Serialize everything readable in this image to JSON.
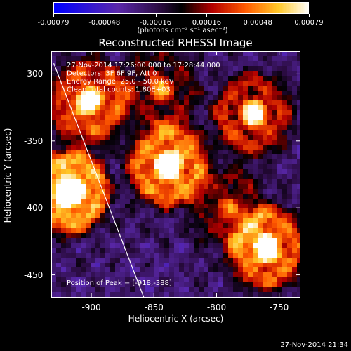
{
  "colorbar": {
    "tick_labels": [
      "-0.00079",
      "-0.00048",
      "-0.00016",
      "0.00016",
      "0.00048",
      "0.00079"
    ],
    "units": "(photons cm⁻² s⁻¹ asec⁻²)"
  },
  "chart_data": {
    "type": "heatmap",
    "title": "Reconstructed RHESSI Image",
    "xlabel": "Heliocentric X (arcsec)",
    "ylabel": "Heliocentric Y (arcsec)",
    "xlim": [
      -932,
      -733
    ],
    "ylim": [
      -467,
      -283
    ],
    "xticks": [
      -900,
      -850,
      -800,
      -750
    ],
    "xtick_labels": [
      "-900",
      "-850",
      "-800",
      "-750"
    ],
    "yticks": [
      -300,
      -350,
      -400,
      -450
    ],
    "ytick_labels": [
      "-300",
      "-350",
      "-400",
      "-450"
    ],
    "color_range": [
      -0.00079,
      0.00079
    ],
    "annotations": [
      "27-Nov-2014 17:26:00.000 to 17:28:44.000",
      "Detectors: 3F 6F 9F, Att 0",
      "Energy Range: 25.0 - 50.0 keV",
      "Clean    Total counts: 1.80E+03"
    ],
    "peak_label": "Position of Peak = [-918,-388]",
    "limb_line": {
      "x": [
        -930,
        -858
      ],
      "y": [
        -292,
        -467
      ]
    },
    "bright_sources": [
      {
        "x": -902,
        "y": -320,
        "strength": 0.7
      },
      {
        "x": -918,
        "y": -388,
        "strength": 1.0
      },
      {
        "x": -838,
        "y": -368,
        "strength": 0.85
      },
      {
        "x": -770,
        "y": -330,
        "strength": 0.6
      },
      {
        "x": -760,
        "y": -430,
        "strength": 0.8
      },
      {
        "x": -845,
        "y": -310,
        "strength": 0.35
      },
      {
        "x": -790,
        "y": -400,
        "strength": 0.3
      }
    ]
  },
  "footer": {
    "timestamp": "27-Nov-2014 21:34"
  }
}
